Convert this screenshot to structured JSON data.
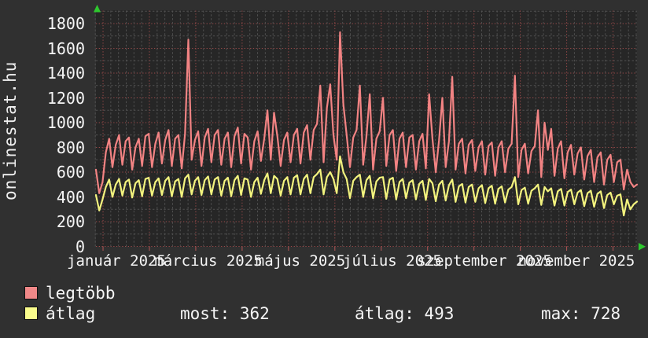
{
  "site_label": "onlinestat.hu",
  "colors": {
    "background": "#303030",
    "plot_background": "#262626",
    "grid_gray": "#505050",
    "grid_red": "#9a4a4a",
    "tick_red": "#b35555",
    "series_max": "#f28383",
    "series_avg": "#f3f37e",
    "legend_swatch_max": "#f08888",
    "legend_swatch_avg": "#fafc8c",
    "axis_arrow_green": "#2ec82e",
    "text": "#f5f5f5"
  },
  "legend": {
    "items": [
      {
        "label": "legtöbb",
        "color": "#f08888"
      },
      {
        "label": "átlag",
        "color": "#fafc8c"
      }
    ]
  },
  "stats": {
    "items": [
      {
        "text": "most: 362"
      },
      {
        "text": "átlag: 493"
      },
      {
        "text": "max: 728"
      }
    ]
  },
  "chart_data": {
    "type": "line",
    "title": "",
    "xlabel": "",
    "ylabel": "",
    "x_tick_labels": [
      "január 2025",
      "március 2025",
      "május 2025",
      "július 2025",
      "szeptember 2025",
      "november 2025"
    ],
    "y_ticks": [
      0,
      200,
      400,
      600,
      800,
      1000,
      1200,
      1400,
      1600,
      1800
    ],
    "ylim": [
      0,
      1908
    ],
    "x_range": "2025. január – november, napi adatok (~2 naponként mintavételezve)",
    "grid": {
      "horizontal_every": 100,
      "red_every": 200,
      "style": "dotted"
    },
    "legend_position": "bottom-left",
    "series": [
      {
        "name": "legtöbb",
        "color": "#f28383",
        "values": [
          620,
          430,
          520,
          760,
          870,
          640,
          820,
          900,
          660,
          850,
          880,
          620,
          800,
          870,
          650,
          890,
          910,
          640,
          830,
          920,
          670,
          860,
          940,
          650,
          870,
          900,
          630,
          910,
          1670,
          700,
          860,
          930,
          650,
          880,
          950,
          680,
          900,
          940,
          660,
          870,
          920,
          640,
          890,
          960,
          670,
          910,
          880,
          620,
          850,
          930,
          690,
          870,
          1100,
          700,
          1080,
          890,
          650,
          860,
          920,
          680,
          900,
          950,
          670,
          920,
          980,
          700,
          940,
          990,
          1300,
          680,
          1120,
          1310,
          900,
          700,
          1730,
          1150,
          900,
          640,
          880,
          940,
          1300,
          660,
          890,
          1230,
          620,
          870,
          930,
          1200,
          650,
          900,
          940,
          610,
          870,
          920,
          640,
          880,
          900,
          620,
          850,
          910,
          630,
          1230,
          870,
          600,
          860,
          1200,
          640,
          850,
          1370,
          620,
          830,
          870,
          590,
          820,
          860,
          610,
          800,
          850,
          580,
          810,
          840,
          570,
          800,
          850,
          600,
          790,
          830,
          1380,
          560,
          780,
          830,
          590,
          770,
          810,
          1100,
          560,
          1000,
          780,
          950,
          570,
          790,
          850,
          550,
          760,
          820,
          580,
          750,
          800,
          540,
          730,
          780,
          520,
          720,
          760,
          500,
          700,
          740,
          520,
          680,
          700,
          460,
          620,
          520,
          480,
          500
        ]
      },
      {
        "name": "átlag",
        "color": "#f3f37e",
        "values": [
          415,
          290,
          380,
          480,
          540,
          400,
          500,
          545,
          410,
          520,
          540,
          395,
          510,
          535,
          405,
          545,
          555,
          410,
          520,
          550,
          415,
          530,
          560,
          405,
          525,
          545,
          400,
          550,
          580,
          420,
          530,
          560,
          415,
          535,
          565,
          420,
          540,
          560,
          410,
          530,
          555,
          405,
          535,
          570,
          415,
          550,
          540,
          400,
          520,
          555,
          425,
          535,
          590,
          430,
          570,
          545,
          410,
          530,
          560,
          420,
          555,
          575,
          420,
          545,
          580,
          430,
          560,
          585,
          620,
          420,
          560,
          600,
          545,
          430,
          728,
          600,
          545,
          390,
          530,
          560,
          580,
          400,
          535,
          570,
          390,
          525,
          555,
          560,
          385,
          540,
          555,
          380,
          520,
          545,
          390,
          515,
          535,
          380,
          505,
          530,
          375,
          545,
          510,
          365,
          500,
          530,
          370,
          495,
          540,
          360,
          485,
          505,
          355,
          480,
          500,
          360,
          470,
          495,
          350,
          470,
          490,
          345,
          465,
          485,
          355,
          460,
          480,
          560,
          340,
          455,
          475,
          345,
          450,
          470,
          500,
          335,
          480,
          445,
          470,
          330,
          445,
          465,
          330,
          440,
          460,
          340,
          435,
          455,
          325,
          430,
          450,
          320,
          425,
          445,
          310,
          415,
          435,
          340,
          410,
          420,
          250,
          380,
          300,
          340,
          362
        ]
      }
    ]
  }
}
